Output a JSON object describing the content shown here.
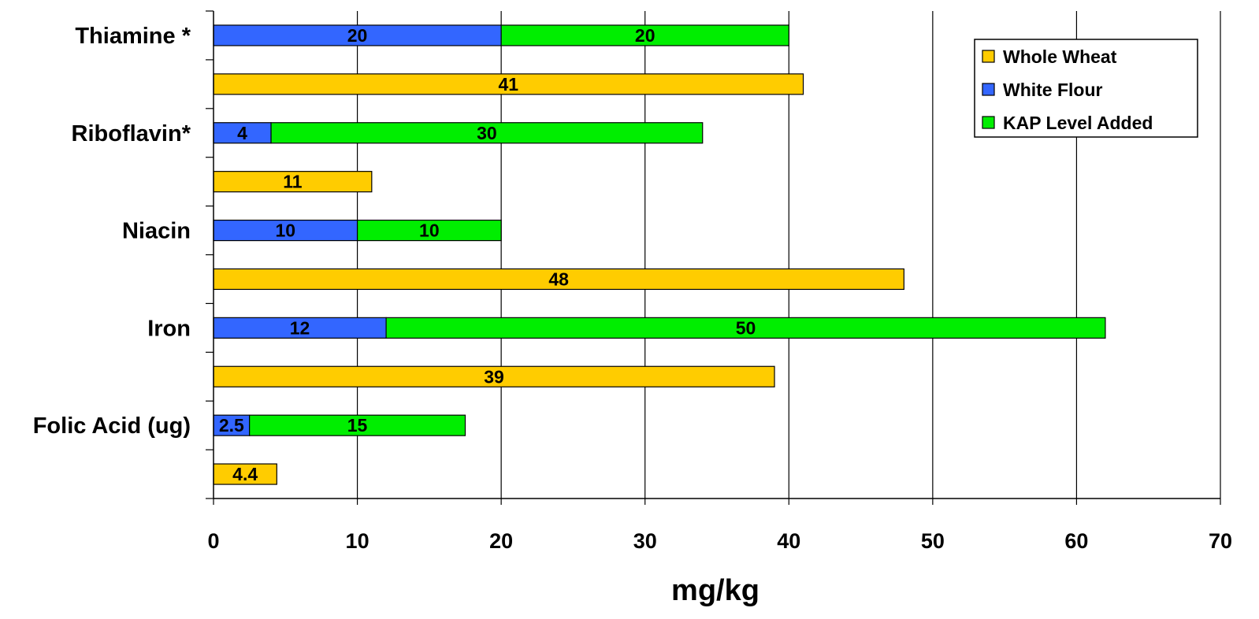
{
  "chart_data": {
    "type": "bar",
    "orientation": "horizontal",
    "stacked": true,
    "xlabel": "mg/kg",
    "xlim": [
      0,
      70
    ],
    "xticks": [
      0,
      10,
      20,
      30,
      40,
      50,
      60,
      70
    ],
    "grid": "vertical",
    "legend_position": "top-right",
    "categories": [
      "Thiamine *",
      "Riboflavin*",
      "Niacin",
      "Iron",
      "Folic Acid (ug)"
    ],
    "bars": [
      {
        "category": "Thiamine *",
        "segments": [
          {
            "series": "White Flour",
            "value": 20,
            "label": "20"
          },
          {
            "series": "KAP Level Added",
            "value": 20,
            "label": "20"
          }
        ]
      },
      {
        "category": "Thiamine *",
        "segments": [
          {
            "series": "Whole Wheat",
            "value": 41,
            "label": "41"
          }
        ]
      },
      {
        "category": "Riboflavin*",
        "segments": [
          {
            "series": "White Flour",
            "value": 4,
            "label": "4"
          },
          {
            "series": "KAP Level Added",
            "value": 30,
            "label": "30"
          }
        ]
      },
      {
        "category": "Riboflavin*",
        "segments": [
          {
            "series": "Whole Wheat",
            "value": 11,
            "label": "11"
          }
        ]
      },
      {
        "category": "Niacin",
        "segments": [
          {
            "series": "White Flour",
            "value": 10,
            "label": "10"
          },
          {
            "series": "KAP Level Added",
            "value": 10,
            "label": "10"
          }
        ]
      },
      {
        "category": "Niacin",
        "segments": [
          {
            "series": "Whole Wheat",
            "value": 48,
            "label": "48"
          }
        ]
      },
      {
        "category": "Iron",
        "segments": [
          {
            "series": "White Flour",
            "value": 12,
            "label": "12"
          },
          {
            "series": "KAP Level Added",
            "value": 50,
            "label": "50"
          }
        ]
      },
      {
        "category": "Iron",
        "segments": [
          {
            "series": "Whole Wheat",
            "value": 39,
            "label": "39"
          }
        ]
      },
      {
        "category": "Folic Acid (ug)",
        "segments": [
          {
            "series": "White Flour",
            "value": 2.5,
            "label": "2.5"
          },
          {
            "series": "KAP Level Added",
            "value": 15,
            "label": "15"
          }
        ]
      },
      {
        "category": "Folic Acid (ug)",
        "segments": [
          {
            "series": "Whole Wheat",
            "value": 4.4,
            "label": "4.4"
          }
        ]
      }
    ],
    "legend": [
      {
        "name": "Whole Wheat",
        "color": "#FFCC00"
      },
      {
        "name": "White Flour",
        "color": "#3366FF"
      },
      {
        "name": "KAP Level Added",
        "color": "#00EE00"
      }
    ]
  }
}
